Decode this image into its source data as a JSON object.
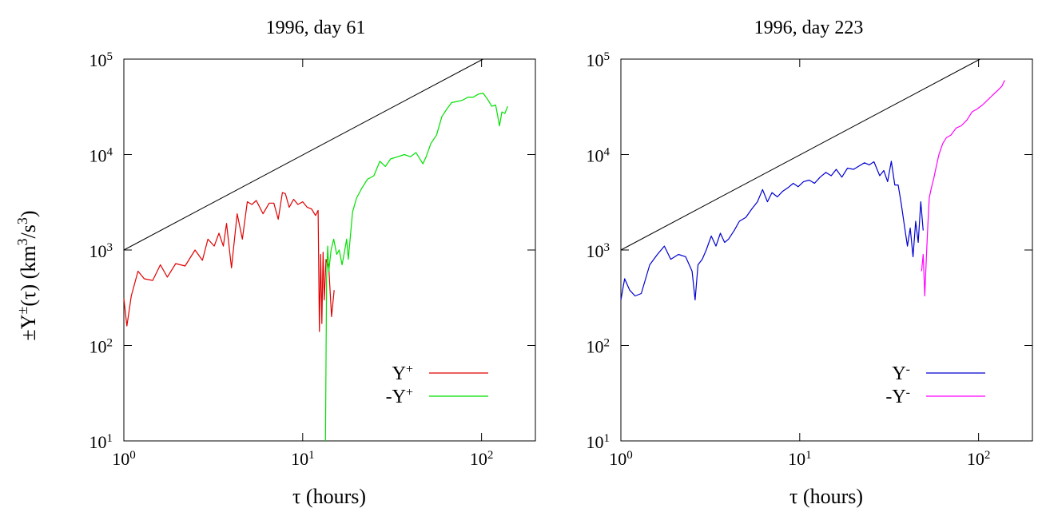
{
  "figure": {
    "ylabel": {
      "pm": "±",
      "Y": "Y",
      "sup": "±",
      "arg": "(τ) (km",
      "sup3a": "3",
      "slash": "/s",
      "sup3b": "3",
      "close": ")"
    }
  },
  "chart_data": [
    {
      "type": "line",
      "title": "1996, day 61",
      "xlabel": "τ (hours)",
      "xscale": "log",
      "yscale": "log",
      "xlim": [
        1,
        200
      ],
      "ylim": [
        10,
        100000
      ],
      "xticks": [
        {
          "base": "10",
          "exp": "0"
        },
        {
          "base": "10",
          "exp": "1"
        },
        {
          "base": "10",
          "exp": "2"
        }
      ],
      "yticks": [
        {
          "base": "10",
          "exp": "1"
        },
        {
          "base": "10",
          "exp": "2"
        },
        {
          "base": "10",
          "exp": "3"
        },
        {
          "base": "10",
          "exp": "4"
        },
        {
          "base": "10",
          "exp": "5"
        }
      ],
      "legend_position": "bottom-right",
      "reference_line": {
        "color": "#000000",
        "x": [
          1,
          102
        ],
        "y": [
          1000,
          100000
        ]
      },
      "series": [
        {
          "name": "Y",
          "sup": "+",
          "color": "#e00000",
          "x": [
            1.0,
            1.04,
            1.1,
            1.2,
            1.3,
            1.45,
            1.6,
            1.75,
            1.95,
            2.2,
            2.5,
            2.75,
            2.95,
            3.2,
            3.4,
            3.6,
            3.75,
            4.0,
            4.3,
            4.6,
            4.9,
            5.2,
            5.5,
            6.0,
            6.5,
            6.9,
            7.3,
            7.7,
            8.0,
            8.4,
            8.9,
            9.4,
            10.0,
            10.6,
            11.2,
            11.8,
            12.2,
            12.4,
            12.6,
            12.8,
            13.0,
            13.2,
            13.5,
            14.0,
            14.5,
            15.0
          ],
          "y": [
            310,
            160,
            330,
            600,
            500,
            480,
            700,
            520,
            720,
            680,
            1000,
            780,
            1300,
            1100,
            1500,
            1100,
            1900,
            650,
            2400,
            1300,
            3200,
            3000,
            3300,
            2400,
            3100,
            3100,
            2100,
            4000,
            3900,
            2800,
            3400,
            3000,
            3200,
            2800,
            2700,
            2300,
            2600,
            140,
            900,
            170,
            950,
            300,
            800,
            650,
            200,
            380
          ]
        },
        {
          "name": "-Y",
          "sup": "+",
          "color": "#00e000",
          "x": [
            13.4,
            13.6,
            13.8,
            14.0,
            14.4,
            14.9,
            15.5,
            16.0,
            16.6,
            17.2,
            17.6,
            18.0,
            19.0,
            20.0,
            21.5,
            23.0,
            25.0,
            27.0,
            29.0,
            31.0,
            34.0,
            37.0,
            40.0,
            43.0,
            47.0,
            49.0,
            52.0,
            56.0,
            60.0,
            64.0,
            68.0,
            73.0,
            78.0,
            84.0,
            90.0,
            96.0,
            102.0,
            108.0,
            114.0,
            120.0,
            126.0,
            130.0,
            135.0,
            140.0
          ],
          "y": [
            10,
            500,
            1100,
            600,
            1000,
            1300,
            900,
            1000,
            700,
            1000,
            1300,
            800,
            2500,
            3500,
            4500,
            5500,
            6000,
            8500,
            7500,
            9000,
            9500,
            10000,
            9500,
            10500,
            8000,
            9500,
            13000,
            16000,
            25000,
            30000,
            35000,
            36000,
            37000,
            40000,
            40000,
            43000,
            44000,
            38000,
            32000,
            33000,
            20000,
            28000,
            27000,
            32000
          ]
        }
      ]
    },
    {
      "type": "line",
      "title": "1996, day 223",
      "xlabel": "τ (hours)",
      "xscale": "log",
      "yscale": "log",
      "xlim": [
        1,
        200
      ],
      "ylim": [
        10,
        100000
      ],
      "xticks": [
        {
          "base": "10",
          "exp": "0"
        },
        {
          "base": "10",
          "exp": "1"
        },
        {
          "base": "10",
          "exp": "2"
        }
      ],
      "yticks": [
        {
          "base": "10",
          "exp": "1"
        },
        {
          "base": "10",
          "exp": "2"
        },
        {
          "base": "10",
          "exp": "3"
        },
        {
          "base": "10",
          "exp": "4"
        },
        {
          "base": "10",
          "exp": "5"
        }
      ],
      "legend_position": "bottom-right",
      "reference_line": {
        "color": "#000000",
        "x": [
          1,
          102
        ],
        "y": [
          1000,
          100000
        ]
      },
      "series": [
        {
          "name": "Y",
          "sup": "-",
          "color": "#0000d0",
          "x": [
            1.0,
            1.05,
            1.12,
            1.2,
            1.3,
            1.45,
            1.6,
            1.75,
            1.9,
            2.1,
            2.3,
            2.5,
            2.6,
            2.7,
            2.85,
            3.0,
            3.2,
            3.4,
            3.6,
            3.8,
            4.0,
            4.3,
            4.6,
            5.0,
            5.4,
            5.8,
            6.2,
            6.6,
            7.0,
            7.5,
            8.0,
            8.6,
            9.2,
            9.8,
            10.5,
            11.3,
            12.1,
            13.0,
            14.0,
            15.0,
            16.0,
            17.2,
            18.5,
            20.0,
            21.5,
            23.0,
            24.5,
            26.0,
            28.0,
            29.5,
            31.0,
            32.5,
            34.0,
            35.5,
            37.0,
            38.5,
            40.0,
            41.5,
            43.0,
            44.5,
            46.0,
            47.5,
            49.0
          ],
          "y": [
            300,
            500,
            380,
            330,
            350,
            700,
            900,
            1100,
            800,
            900,
            850,
            600,
            300,
            700,
            800,
            1000,
            1400,
            1100,
            1500,
            1200,
            1300,
            1600,
            2000,
            2200,
            2700,
            3200,
            4300,
            3200,
            4000,
            3600,
            4100,
            4500,
            5000,
            4600,
            5200,
            5400,
            5000,
            5800,
            6500,
            6000,
            7000,
            5800,
            7200,
            7000,
            7600,
            8200,
            7800,
            8400,
            6000,
            6800,
            5200,
            8500,
            4800,
            4800,
            3000,
            1800,
            1100,
            1700,
            850,
            2000,
            1200,
            3200,
            1600
          ]
        },
        {
          "name": "-Y",
          "sup": "-",
          "color": "#ff00ff",
          "x": [
            48.0,
            49.0,
            50.0,
            51.0,
            52.0,
            53.0,
            54.5,
            56.0,
            58.0,
            60.0,
            63.0,
            66.0,
            70.0,
            75.0,
            80.0,
            86.0,
            92.0,
            98.0,
            105.0,
            112.0,
            120.0,
            128.0,
            135.0,
            140.0
          ],
          "y": [
            600,
            900,
            330,
            800,
            1800,
            3500,
            4500,
            5500,
            7500,
            10000,
            13000,
            15000,
            16000,
            19000,
            20000,
            23000,
            28000,
            30000,
            33000,
            37000,
            42000,
            47000,
            52000,
            60000
          ]
        }
      ]
    }
  ]
}
